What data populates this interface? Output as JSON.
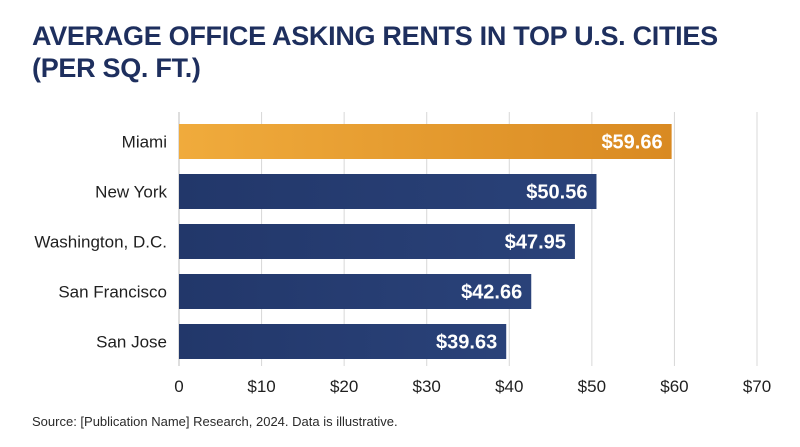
{
  "chart_data": {
    "type": "bar",
    "orientation": "horizontal",
    "title_lines": [
      "AVERAGE OFFICE ASKING RENTS IN TOP U.S. CITIES",
      "(PER SQ. FT.)"
    ],
    "categories": [
      "Miami",
      "New York",
      "Washington, D.C.",
      "San Francisco",
      "San Jose"
    ],
    "values": [
      59.66,
      50.56,
      47.95,
      42.66,
      39.63
    ],
    "data_labels": [
      "$59.66",
      "$50.56",
      "$47.95",
      "$42.66",
      "$39.63"
    ],
    "xlim": [
      0,
      70
    ],
    "x_ticks": [
      0,
      10,
      20,
      30,
      40,
      50,
      60,
      70
    ],
    "x_tick_labels": [
      "0",
      "$10",
      "$20",
      "$30",
      "$40",
      "$50",
      "$60",
      "$70"
    ],
    "grid": true,
    "colors": {
      "highlight": "#e9a030",
      "default": "#243a6b",
      "label": "#ffffff",
      "title": "#1e2f5e",
      "grid": "#d8d8d8"
    },
    "highlight_index": 0
  },
  "source": "Source: [Publication Name] Research, 2024. Data is illustrative."
}
